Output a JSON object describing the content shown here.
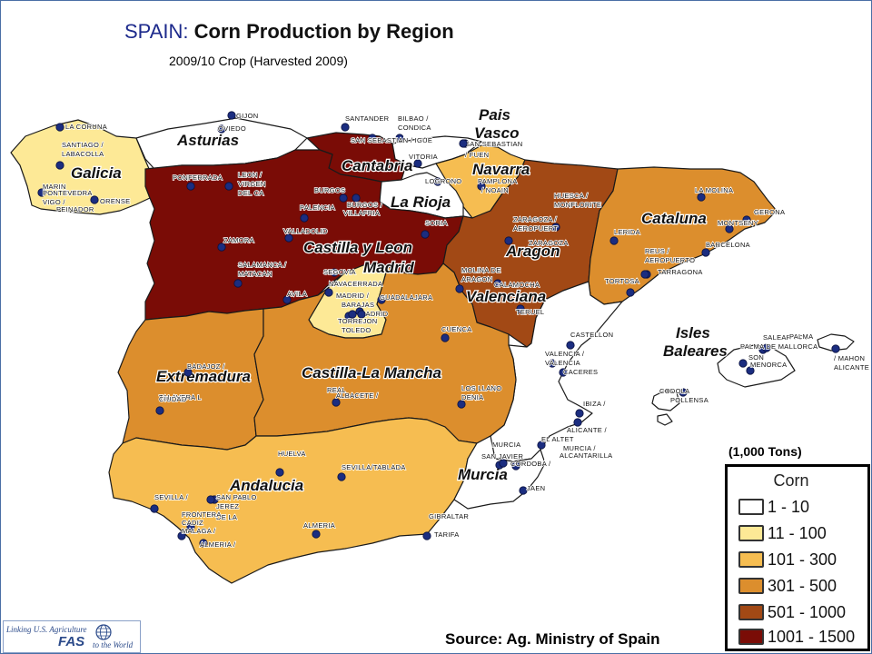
{
  "title": {
    "country": "SPAIN:",
    "main": "Corn Production by Region"
  },
  "subtitle": "2009/10 Crop (Harvested 2009)",
  "units": "(1,000 Tons)",
  "legend": {
    "title": "Corn",
    "items": [
      {
        "label": "1 - 10",
        "color": "#ffffff"
      },
      {
        "label": "11 - 100",
        "color": "#fde996"
      },
      {
        "label": "101 - 300",
        "color": "#f6bd51"
      },
      {
        "label": "301 - 500",
        "color": "#dc8e2d"
      },
      {
        "label": "501 - 1000",
        "color": "#a24915"
      },
      {
        "label": "1001 - 1500",
        "color": "#7a0c06"
      }
    ]
  },
  "regions": [
    {
      "name": "Galicia",
      "class": "11 - 100"
    },
    {
      "name": "Asturias",
      "class": "1 - 10"
    },
    {
      "name": "Cantabria",
      "class": "1001 - 1500"
    },
    {
      "name": "Pais Vasco",
      "class": "1 - 10"
    },
    {
      "name": "Navarra",
      "class": "101 - 300"
    },
    {
      "name": "La Rioja",
      "class": "1 - 10"
    },
    {
      "name": "Castilla y Leon",
      "class": "1001 - 1500"
    },
    {
      "name": "Madrid",
      "class": "11 - 100"
    },
    {
      "name": "Aragon",
      "class": "501 - 1000"
    },
    {
      "name": "Cataluna",
      "class": "301 - 500"
    },
    {
      "name": "Valenciana",
      "class": "1 - 10"
    },
    {
      "name": "Extremadura",
      "class": "301 - 500"
    },
    {
      "name": "Castilla-La Mancha",
      "class": "301 - 500"
    },
    {
      "name": "Andalucia",
      "class": "101 - 300"
    },
    {
      "name": "Murcia",
      "class": "1 - 10"
    },
    {
      "name": "Isles Baleares",
      "class": "1 - 10"
    }
  ],
  "region_labels": {
    "galicia": "Galicia",
    "asturias": "Asturias",
    "cantabria": "Cantabria",
    "pais": "Pais",
    "vasco": "Vasco",
    "navarra": "Navarra",
    "la_rioja": "La Rioja",
    "castilla_leon": "Castilla y Leon",
    "madrid": "Madrid",
    "aragon": "Aragon",
    "cataluna": "Cataluna",
    "valenciana": "Valenciana",
    "extremadura": "Extremadura",
    "castilla_la_mancha": "Castilla-La Mancha",
    "andalucia": "Andalucia",
    "murcia": "Murcia",
    "isles": "Isles",
    "baleares": "Baleares"
  },
  "cities": [
    "LA CORUNA",
    "GIJON",
    "OVIEDO",
    "SANTANDER",
    "BILBAO /",
    "CONDICA",
    "SAN SEBASTIAN / IGUE",
    "SAN SEBASTIAN",
    "/ FUEN",
    "SANTIAGO /",
    "LABACOLLA",
    "VITORIA",
    "LOGRONO",
    "PAMPLONA",
    "/ NOAIN",
    "PONFERRADA",
    "LEON /",
    "VIRGEN",
    "DEL CA",
    "MARIN",
    "PONTEVEDRA",
    "VIGO /",
    "PEINADOR",
    "ORENSE",
    "BURGOS",
    "BURGOS /",
    "VILLAFRIA",
    "PALENCIA",
    "VALLADOLID",
    "SORIA",
    "HUESCA /",
    "MONFLORITE",
    "LA MOLINA",
    "GERONA",
    "MONTSENY",
    "ZARAGOZA /",
    "AEROPUERT",
    "ZARAGOZA",
    "LERIDA",
    "BARCELONA",
    "ZAMORA",
    "SALAMANCA /",
    "MATACAN",
    "SEGOVIA",
    "NAVACERRADA",
    "AVILA",
    "MADRID /",
    "BARAJAS",
    "MADRID",
    "TORREJON",
    "TOLEDO",
    "GUADALAJARA",
    "MOLINA DE",
    "ARAGON",
    "CALAMOCHA",
    "TERUEL",
    "REUS /",
    "AEROPUERTO",
    "TARRAGONA",
    "TORTOSA",
    "CUENCA",
    "CASTELLON",
    "VALENCIA /",
    "VALENCIA",
    "CACERES",
    "BADAJOZ /",
    "TALAVERA L",
    "CIUDAD",
    "REAL",
    "ALBACETE /",
    "LOS LLANO",
    "DENIA",
    "IBIZA /",
    "CODOLA",
    "POLLENSA",
    "SALEAR I C I",
    "PALMA",
    "PALMA DE MALLORCA",
    "SON",
    "MENORCA",
    "/ MAHON",
    "ALICANTE",
    "ALICANTE /",
    "EL ALTET",
    "MURCIA /",
    "ALCANTARILLA",
    "MURCIA",
    "SAN JAVIER",
    "CORDOBA /",
    "JAEN",
    "HUELVA",
    "SEVILLA/TABLADA",
    "SEVILLA /",
    "SAN PABLO",
    "JEREZ",
    "DE LA",
    "FRONTERA",
    "CADIZ",
    "MALAGA /",
    "ALMERIA /",
    "ALMERIA",
    "GIBRALTAR",
    "TARIFA"
  ],
  "source": "Source: Ag. Ministry of Spain",
  "logo": {
    "line1": "Linking U.S. Agriculture",
    "brand": "FAS",
    "line2": "to the World"
  }
}
